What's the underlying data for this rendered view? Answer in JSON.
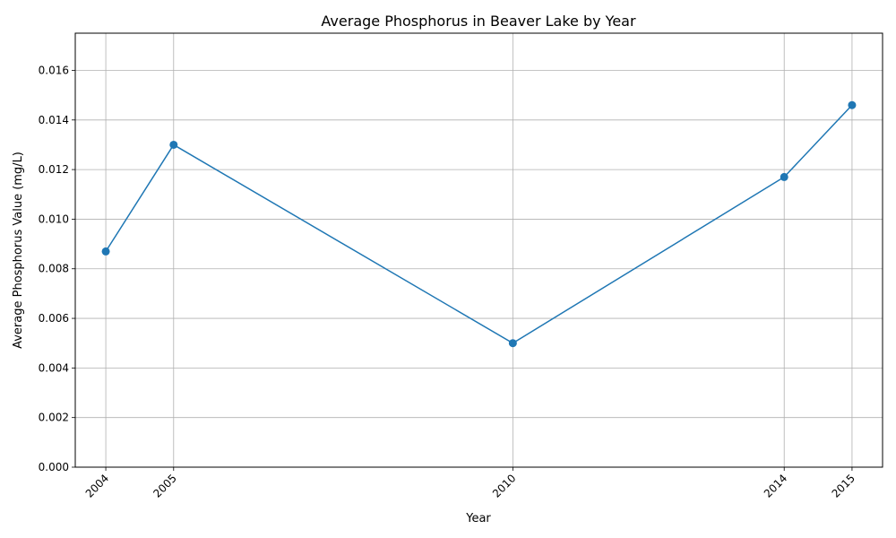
{
  "chart_data": {
    "type": "line",
    "title": "Average Phosphorus in Beaver Lake by Year",
    "xlabel": "Year",
    "ylabel": "Average Phosphorus Value (mg/L)",
    "x": [
      2004,
      2005,
      2010,
      2014,
      2015
    ],
    "xtick_labels": [
      "2004",
      "2005",
      "2010",
      "2014",
      "2015"
    ],
    "series": [
      {
        "values": [
          0.0087,
          0.013,
          0.005,
          0.0117,
          0.0146
        ],
        "color": "#1f77b4",
        "marker": "circle"
      }
    ],
    "xlim": [
      2003.55,
      2015.45
    ],
    "ylim": [
      0,
      0.0175
    ],
    "yticks": [
      0,
      0.002,
      0.004,
      0.006,
      0.008,
      0.01,
      0.012,
      0.014,
      0.016
    ],
    "ytick_labels": [
      "0.000",
      "0.002",
      "0.004",
      "0.006",
      "0.008",
      "0.010",
      "0.012",
      "0.014",
      "0.016"
    ],
    "grid": true,
    "legend": "none"
  }
}
